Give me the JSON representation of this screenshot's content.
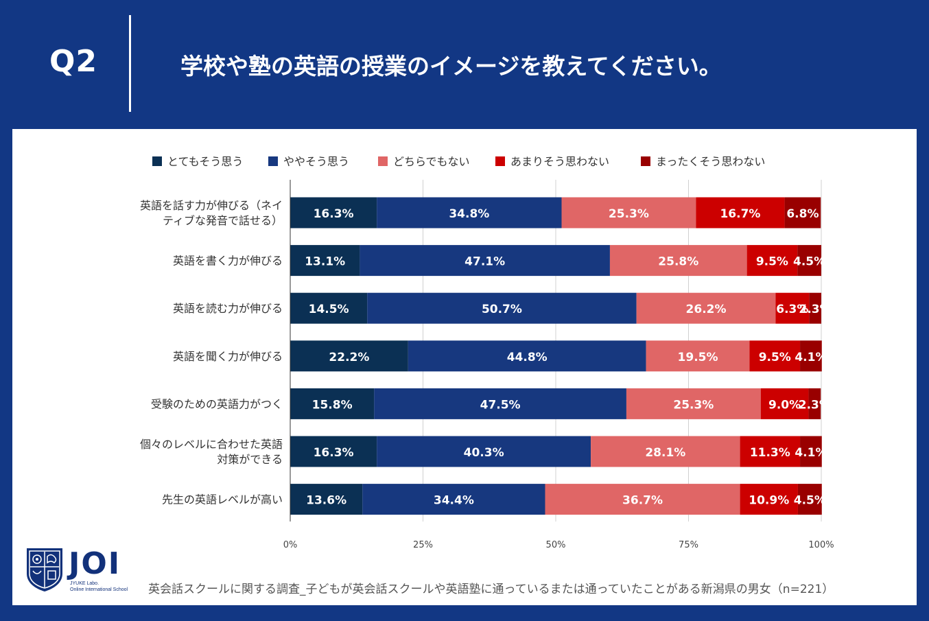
{
  "header": {
    "qnum": "Q2",
    "title": "学校や塾の英語の授業のイメージを教えてください。"
  },
  "colors": {
    "background": "#123784",
    "series": [
      "#0b3054",
      "#17387f",
      "#e06666",
      "#cc0000",
      "#990000"
    ]
  },
  "chart_data": {
    "type": "bar",
    "orientation": "horizontal",
    "stacked": "percent",
    "legend_position": "top",
    "categories": [
      [
        "英語を話す力が伸びる（ネイ",
        "ティブな発音で話せる）"
      ],
      [
        "英語を書く力が伸びる"
      ],
      [
        "英語を読む力が伸びる"
      ],
      [
        "英語を聞く力が伸びる"
      ],
      [
        "受験のための英語力がつく"
      ],
      [
        "個々のレベルに合わせた英語",
        "対策ができる"
      ],
      [
        "先生の英語レベルが高い"
      ]
    ],
    "series": [
      {
        "name": "とてもそう思う",
        "values": [
          16.3,
          13.1,
          14.5,
          22.2,
          15.8,
          16.3,
          13.6
        ],
        "labels": [
          "16.3%",
          "13.1%",
          "14.5%",
          "22.2%",
          "15.8%",
          "16.3%",
          "13.6%"
        ]
      },
      {
        "name": "ややそう思う",
        "values": [
          34.8,
          47.1,
          50.7,
          44.8,
          47.5,
          40.3,
          34.4
        ],
        "labels": [
          "34.8%",
          "47.1%",
          "50.7%",
          "44.8%",
          "47.5%",
          "40.3%",
          "34.4%"
        ]
      },
      {
        "name": "どちらでもない",
        "values": [
          25.3,
          25.8,
          26.2,
          19.5,
          25.3,
          28.1,
          36.7
        ],
        "labels": [
          "25.3%",
          "25.8%",
          "26.2%",
          "19.5%",
          "25.3%",
          "28.1%",
          "36.7%"
        ]
      },
      {
        "name": "あまりそう思わない",
        "values": [
          16.7,
          9.5,
          6.3,
          9.5,
          9.0,
          11.3,
          10.9
        ],
        "labels": [
          "16.7%",
          "9.5%",
          "6.3%",
          "9.5%",
          "9.0%",
          "11.3%",
          "10.9%"
        ]
      },
      {
        "name": "まったくそう思わない",
        "values": [
          6.8,
          4.5,
          2.3,
          4.1,
          2.3,
          4.1,
          4.5
        ],
        "labels": [
          "6.8%",
          "4.5%",
          "2.3%",
          "4.1%",
          "2.3%",
          "4.1%",
          "4.5%"
        ]
      }
    ],
    "xlim": [
      0,
      100
    ],
    "xticks": [
      "0%",
      "25%",
      "50%",
      "75%",
      "100%"
    ]
  },
  "logo": {
    "word": "JOI",
    "sub1": "JYUKE Labo.",
    "sub2": "Online International School"
  },
  "footnote": "英会話スクールに関する調査_子どもが英会話スクールや英語塾に通っているまたは通っていたことがある新潟県の男女（n=221）"
}
